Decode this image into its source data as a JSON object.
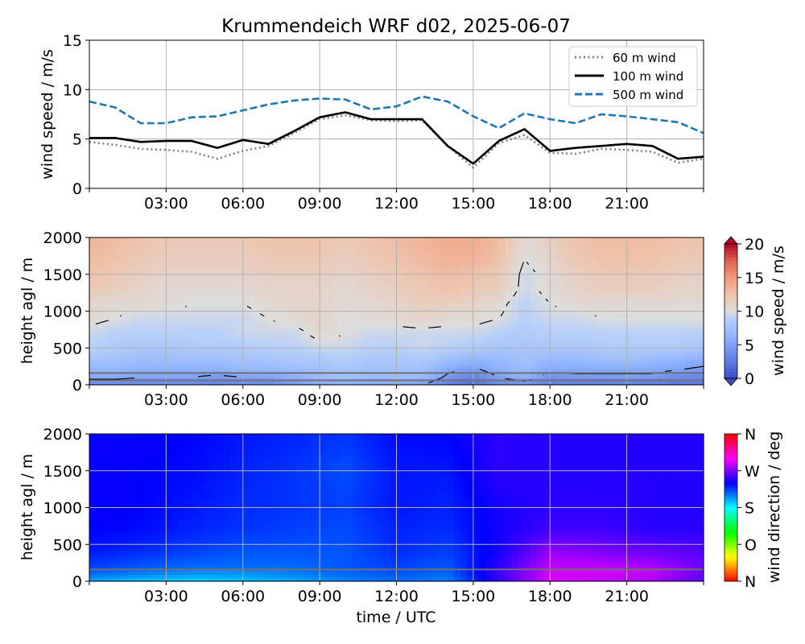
{
  "title": "Krummendeich WRF d02, 2025-06-07",
  "chart_data": [
    {
      "type": "line",
      "ylabel": "wind speed / m/s",
      "xlim": [
        0,
        24
      ],
      "ylim": [
        0,
        15
      ],
      "yticks": [
        0,
        5,
        10,
        15
      ],
      "xticks": [
        3,
        6,
        9,
        12,
        15,
        18,
        21
      ],
      "xticklabels": [
        "03:00",
        "06:00",
        "09:00",
        "12:00",
        "15:00",
        "18:00",
        "21:00"
      ],
      "grid": true,
      "legend_position": "top-right",
      "x": [
        0,
        1,
        2,
        3,
        4,
        5,
        6,
        7,
        8,
        9,
        10,
        11,
        12,
        13,
        14,
        15,
        16,
        17,
        18,
        19,
        20,
        21,
        22,
        23,
        24
      ],
      "series": [
        {
          "name": "60 m wind",
          "style": "dotted",
          "color": "#808080",
          "values": [
            4.7,
            4.4,
            4.0,
            3.9,
            3.7,
            3.0,
            3.8,
            4.3,
            5.6,
            7.0,
            7.4,
            6.9,
            6.8,
            6.9,
            4.3,
            2.1,
            4.6,
            5.4,
            3.6,
            3.5,
            4.0,
            3.9,
            3.7,
            2.6,
            3.0
          ]
        },
        {
          "name": "100 m wind",
          "style": "solid",
          "color": "#000000",
          "values": [
            5.1,
            5.1,
            4.7,
            4.8,
            4.8,
            4.1,
            4.9,
            4.5,
            5.8,
            7.2,
            7.7,
            7.0,
            7.0,
            7.0,
            4.3,
            2.5,
            4.8,
            6.0,
            3.8,
            4.1,
            4.3,
            4.5,
            4.3,
            3.0,
            3.2
          ]
        },
        {
          "name": "500 m wind",
          "style": "dashed",
          "color": "#1f77b4",
          "values": [
            8.8,
            8.2,
            6.6,
            6.6,
            7.2,
            7.3,
            7.9,
            8.5,
            8.9,
            9.1,
            9.0,
            8.0,
            8.3,
            9.3,
            8.8,
            7.3,
            6.1,
            7.6,
            7.0,
            6.6,
            7.5,
            7.3,
            7.0,
            6.7,
            5.6
          ]
        }
      ]
    },
    {
      "type": "heatmap",
      "ylabel": "height agl / m",
      "xlim": [
        0,
        24
      ],
      "ylim": [
        0,
        2000
      ],
      "yticks": [
        0,
        500,
        1000,
        1500,
        2000
      ],
      "xticks": [
        3,
        6,
        9,
        12,
        15,
        18,
        21
      ],
      "xticklabels": [
        "03:00",
        "06:00",
        "09:00",
        "12:00",
        "15:00",
        "18:00",
        "21:00"
      ],
      "colorbar_label": "wind speed / m/s",
      "colorbar_ticks": [
        0,
        5,
        10,
        15,
        20
      ],
      "colormap": "coolwarm",
      "vmin": 0,
      "vmax": 20,
      "contour_levels": [
        5,
        10
      ],
      "reference_heights": [
        60,
        160
      ],
      "x": [
        0,
        1,
        2,
        3,
        4,
        5,
        6,
        7,
        8,
        9,
        10,
        11,
        12,
        13,
        14,
        15,
        16,
        17,
        18,
        19,
        20,
        21,
        22,
        23,
        24
      ],
      "y": [
        0,
        100,
        200,
        300,
        500,
        700,
        900,
        1100,
        1300,
        1500,
        1700,
        2000
      ],
      "z": [
        [
          3.5,
          3.5,
          3.5,
          3.5,
          3.5,
          3.0,
          3.5,
          3.5,
          4.5,
          5.5,
          6.0,
          5.5,
          5.5,
          5.0,
          3.0,
          2.0,
          3.5,
          4.0,
          3.0,
          3.0,
          3.0,
          3.0,
          3.0,
          2.5,
          2.5
        ],
        [
          5.5,
          5.5,
          5.0,
          5.0,
          5.0,
          4.5,
          5.0,
          5.0,
          6.0,
          7.0,
          7.5,
          7.0,
          7.0,
          7.0,
          4.5,
          3.0,
          5.0,
          6.0,
          4.0,
          4.5,
          4.5,
          4.5,
          4.5,
          3.5,
          3.5
        ],
        [
          6.5,
          6.5,
          6.0,
          6.0,
          6.0,
          6.0,
          6.5,
          6.5,
          7.0,
          7.5,
          8.0,
          7.5,
          7.5,
          7.5,
          5.5,
          4.5,
          6.0,
          7.0,
          5.5,
          5.5,
          5.5,
          5.5,
          5.5,
          5.0,
          4.5
        ],
        [
          7.5,
          7.5,
          7.0,
          7.0,
          7.0,
          7.0,
          7.5,
          7.5,
          8.0,
          8.0,
          8.5,
          8.0,
          8.0,
          8.0,
          7.0,
          6.0,
          6.5,
          7.5,
          6.5,
          6.5,
          7.0,
          7.0,
          6.5,
          6.0,
          5.5
        ],
        [
          9.0,
          8.5,
          8.0,
          8.0,
          8.5,
          8.5,
          8.5,
          9.0,
          9.0,
          9.5,
          9.5,
          9.0,
          9.0,
          9.5,
          9.0,
          8.5,
          8.0,
          8.0,
          8.0,
          8.0,
          8.5,
          8.5,
          8.5,
          8.5,
          8.0
        ],
        [
          9.5,
          9.0,
          9.0,
          9.0,
          9.0,
          9.0,
          9.5,
          9.5,
          9.5,
          10.5,
          10.0,
          9.5,
          9.5,
          9.5,
          9.5,
          9.5,
          9.0,
          8.5,
          9.0,
          9.0,
          9.0,
          9.0,
          9.0,
          9.0,
          9.0
        ],
        [
          10.5,
          10.0,
          9.5,
          9.5,
          9.5,
          9.5,
          9.5,
          10.0,
          10.5,
          11.0,
          10.0,
          10.5,
          10.5,
          11.0,
          10.5,
          10.5,
          10.0,
          9.0,
          9.5,
          9.5,
          10.0,
          10.0,
          10.0,
          10.0,
          10.0
        ],
        [
          11.0,
          10.5,
          10.5,
          10.5,
          10.0,
          10.0,
          10.0,
          10.5,
          11.0,
          11.0,
          10.5,
          10.5,
          11.0,
          11.5,
          11.5,
          11.0,
          10.5,
          9.0,
          10.0,
          10.5,
          10.5,
          10.5,
          10.5,
          10.5,
          10.5
        ],
        [
          12.0,
          11.5,
          11.0,
          10.5,
          10.5,
          10.5,
          10.5,
          11.0,
          11.0,
          11.0,
          10.5,
          11.0,
          11.5,
          12.0,
          12.5,
          12.0,
          11.5,
          9.5,
          10.5,
          11.0,
          11.5,
          11.5,
          11.5,
          11.0,
          11.0
        ],
        [
          12.5,
          12.0,
          11.5,
          11.0,
          11.0,
          11.0,
          11.0,
          11.5,
          11.5,
          11.5,
          11.0,
          11.5,
          12.0,
          12.5,
          13.0,
          12.5,
          12.0,
          9.5,
          10.5,
          11.5,
          12.0,
          12.0,
          12.0,
          11.5,
          11.5
        ],
        [
          13.0,
          12.5,
          12.0,
          11.5,
          11.5,
          11.5,
          11.5,
          12.0,
          12.0,
          12.0,
          11.5,
          12.0,
          12.5,
          13.0,
          13.5,
          13.5,
          12.5,
          10.0,
          11.0,
          12.0,
          12.5,
          12.5,
          12.5,
          12.0,
          12.0
        ],
        [
          13.5,
          13.0,
          12.5,
          12.0,
          12.0,
          12.0,
          12.0,
          12.5,
          12.5,
          12.5,
          12.0,
          12.5,
          13.0,
          13.5,
          14.0,
          14.0,
          13.0,
          10.5,
          11.5,
          12.5,
          13.0,
          13.0,
          13.0,
          12.5,
          12.5
        ]
      ]
    },
    {
      "type": "heatmap",
      "ylabel": "height agl / m",
      "xlabel": "time / UTC",
      "xlim": [
        0,
        24
      ],
      "ylim": [
        0,
        2000
      ],
      "yticks": [
        0,
        500,
        1000,
        1500,
        2000
      ],
      "xticks": [
        3,
        6,
        9,
        12,
        15,
        18,
        21
      ],
      "xticklabels": [
        "03:00",
        "06:00",
        "09:00",
        "12:00",
        "15:00",
        "18:00",
        "21:00"
      ],
      "colorbar_label": "wind direction / deg",
      "colorbar_ticklabels": [
        "N",
        "O",
        "S",
        "W",
        "N"
      ],
      "colormap": "hsv",
      "vmin": 0,
      "vmax": 360,
      "reference_heights": [
        160
      ],
      "x": [
        0,
        2,
        4,
        6,
        8,
        10,
        12,
        14,
        16,
        18,
        20,
        22,
        24
      ],
      "y": [
        0,
        100,
        200,
        400,
        700,
        1000,
        1500,
        2000
      ],
      "z": [
        [
          200,
          195,
          190,
          195,
          200,
          210,
          215,
          210,
          250,
          290,
          285,
          280,
          260
        ],
        [
          215,
          210,
          205,
          205,
          210,
          215,
          220,
          215,
          255,
          290,
          290,
          285,
          265
        ],
        [
          225,
          220,
          215,
          215,
          215,
          220,
          225,
          220,
          250,
          285,
          285,
          280,
          265
        ],
        [
          235,
          230,
          225,
          220,
          220,
          220,
          230,
          225,
          245,
          275,
          270,
          265,
          260
        ],
        [
          240,
          238,
          232,
          228,
          225,
          222,
          232,
          230,
          245,
          255,
          255,
          250,
          250
        ],
        [
          242,
          240,
          235,
          230,
          228,
          225,
          235,
          232,
          245,
          250,
          250,
          248,
          248
        ],
        [
          242,
          240,
          238,
          232,
          228,
          222,
          235,
          235,
          250,
          248,
          248,
          248,
          248
        ],
        [
          242,
          242,
          240,
          235,
          232,
          228,
          238,
          240,
          250,
          248,
          248,
          248,
          248
        ]
      ]
    }
  ]
}
